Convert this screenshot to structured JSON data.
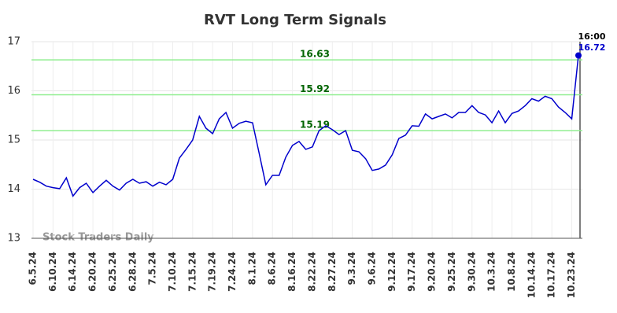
{
  "chart_data": {
    "type": "line",
    "title": "RVT Long Term Signals",
    "watermark": "Stock Traders Daily",
    "last_time": "16:00",
    "categories": [
      "6.5.24",
      null,
      null,
      "6.10.24",
      null,
      null,
      "6.14.24",
      null,
      null,
      "6.20.24",
      null,
      null,
      "6.25.24",
      null,
      null,
      "6.28.24",
      null,
      null,
      "7.5.24",
      null,
      null,
      "7.10.24",
      null,
      null,
      "7.15.24",
      null,
      null,
      "7.19.24",
      null,
      null,
      "7.24.24",
      null,
      null,
      "8.1.24",
      null,
      null,
      "8.6.24",
      null,
      null,
      "8.16.24",
      null,
      null,
      "8.22.24",
      null,
      null,
      "8.27.24",
      null,
      null,
      "9.3.24",
      null,
      null,
      "9.6.24",
      null,
      null,
      "9.12.24",
      null,
      null,
      "9.17.24",
      null,
      null,
      "9.20.24",
      null,
      null,
      "9.25.24",
      null,
      null,
      "9.30.24",
      null,
      null,
      "10.3.24",
      null,
      null,
      "10.8.24",
      null,
      null,
      "10.14.24",
      null,
      null,
      "10.17.24",
      null,
      null,
      "10.23.24",
      null
    ],
    "series": [
      {
        "name": "RVT",
        "color": "#0000cc",
        "values": [
          14.2,
          14.14,
          14.06,
          14.03,
          14.01,
          14.23,
          13.86,
          14.03,
          14.12,
          13.93,
          14.06,
          14.18,
          14.06,
          13.98,
          14.12,
          14.2,
          14.12,
          14.15,
          14.06,
          14.14,
          14.09,
          14.2,
          14.63,
          14.81,
          15.0,
          15.48,
          15.24,
          15.13,
          15.43,
          15.56,
          15.24,
          15.34,
          15.38,
          15.35,
          14.73,
          14.09,
          14.28,
          14.28,
          14.65,
          14.89,
          14.97,
          14.81,
          14.86,
          15.19,
          15.29,
          15.21,
          15.11,
          15.19,
          14.79,
          14.76,
          14.62,
          14.38,
          14.41,
          14.49,
          14.7,
          15.03,
          15.1,
          15.29,
          15.28,
          15.53,
          15.43,
          15.48,
          15.53,
          15.45,
          15.56,
          15.56,
          15.7,
          15.56,
          15.51,
          15.35,
          15.59,
          15.35,
          15.54,
          15.59,
          15.7,
          15.84,
          15.79,
          15.89,
          15.84,
          15.67,
          15.56,
          15.43,
          16.72
        ]
      }
    ],
    "reference_lines": [
      16.63,
      15.92,
      15.19
    ],
    "reference_color": "#90ee90",
    "reference_label_color": "#006400",
    "ylim": [
      13,
      17
    ],
    "yticks": [
      13,
      14,
      15,
      16,
      17
    ],
    "grid": true
  }
}
